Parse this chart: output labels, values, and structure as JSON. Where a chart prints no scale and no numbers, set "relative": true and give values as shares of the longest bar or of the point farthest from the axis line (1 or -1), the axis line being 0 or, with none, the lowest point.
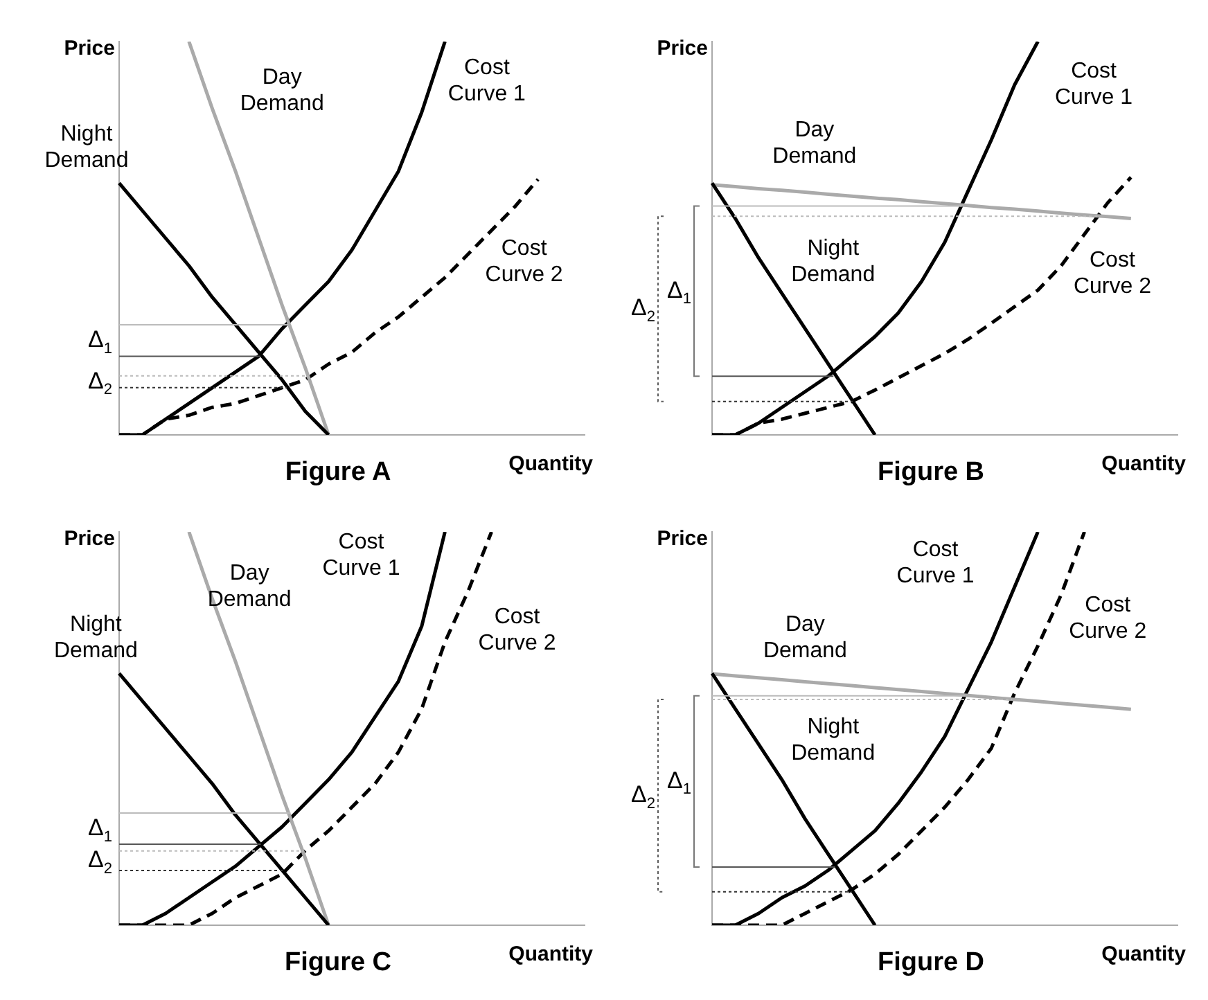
{
  "chart_data": [
    {
      "type": "line",
      "relative": true,
      "title": "Figure A",
      "xlabel": "Quantity",
      "ylabel": "Price",
      "categories": [
        null,
        null,
        null,
        null,
        null,
        null,
        null,
        null,
        null,
        null,
        null,
        null,
        null,
        null,
        null,
        null,
        null,
        null,
        null,
        null,
        null
      ],
      "series": [
        {
          "name": "Night Demand",
          "color": "#000000",
          "values": [
            0.64,
            0.57,
            0.5,
            0.43,
            0.35,
            0.28,
            0.21,
            0.14,
            0.06,
            0,
            null,
            null,
            null,
            null,
            null,
            null,
            null,
            null,
            null,
            null,
            null
          ]
        },
        {
          "name": "Day Demand",
          "color": "#aaaaaa",
          "values": [
            null,
            null,
            null,
            1,
            0.83,
            0.67,
            0.5,
            0.33,
            0.17,
            0,
            null,
            null,
            null,
            null,
            null,
            null,
            null,
            null,
            null,
            null,
            null
          ]
        },
        {
          "name": "Cost Curve 1",
          "color": "#000000",
          "values": [
            0,
            0,
            0.04,
            0.08,
            0.12,
            0.16,
            0.2,
            0.27,
            0.33,
            0.39,
            0.47,
            0.57,
            0.67,
            0.82,
            1,
            null,
            null,
            null,
            null,
            null,
            null
          ]
        },
        {
          "name": "Cost Curve 2",
          "color": "#000000",
          "line_style": "dashed",
          "values": [
            0,
            0,
            0.04,
            0.05,
            0.07,
            0.08,
            0.1,
            0.12,
            0.14,
            0.18,
            0.21,
            0.26,
            0.3,
            0.35,
            0.4,
            0.46,
            0.52,
            0.58,
            0.65,
            null,
            null
          ]
        }
      ],
      "ref_lines": [
        {
          "axis": "y",
          "value": 0.28,
          "color": "#bbbbbb",
          "line_style": "solid"
        },
        {
          "axis": "y",
          "value": 0.2,
          "color": "#555555",
          "line_style": "solid"
        },
        {
          "axis": "y",
          "value": 0.15,
          "color": "#bbbbbb",
          "line_style": "dotted"
        },
        {
          "axis": "y",
          "value": 0.12,
          "color": "#333333",
          "line_style": "dotted"
        }
      ],
      "annotations": [
        "Δ$_{1}$",
        "Δ$_{2}$"
      ]
    },
    {
      "type": "line",
      "relative": true,
      "title": "Figure B",
      "xlabel": "Quantity",
      "ylabel": "Price",
      "categories": [
        null,
        null,
        null,
        null,
        null,
        null,
        null,
        null,
        null,
        null,
        null,
        null,
        null,
        null,
        null,
        null,
        null,
        null,
        null,
        null,
        null
      ],
      "series": [
        {
          "name": "Night Demand",
          "color": "#000000",
          "values": [
            0.64,
            0.55,
            0.45,
            0.36,
            0.27,
            0.18,
            0.09,
            0,
            null,
            null,
            null,
            null,
            null,
            null,
            null,
            null,
            null,
            null,
            null,
            null,
            null
          ]
        },
        {
          "name": "Day Demand",
          "color": "#aaaaaa",
          "values": [
            0.636,
            0.631,
            0.626,
            0.622,
            0.617,
            0.612,
            0.607,
            0.602,
            0.598,
            0.593,
            0.588,
            0.583,
            0.578,
            0.574,
            0.569,
            0.564,
            0.559,
            0.555,
            0.55,
            null,
            null
          ]
        },
        {
          "name": "Cost Curve 1",
          "color": "#000000",
          "values": [
            0,
            0,
            0.03,
            0.07,
            0.11,
            0.15,
            0.2,
            0.25,
            0.31,
            0.39,
            0.49,
            0.62,
            0.75,
            0.89,
            1,
            null,
            null,
            null,
            null,
            null,
            null
          ]
        },
        {
          "name": "Cost Curve 2",
          "color": "#000000",
          "line_style": "dashed",
          "values": [
            0,
            0,
            0.03,
            0.04,
            0.055,
            0.07,
            0.085,
            0.114,
            0.145,
            0.176,
            0.207,
            0.243,
            0.284,
            0.326,
            0.368,
            0.43,
            0.51,
            0.59,
            0.655,
            null,
            null
          ]
        }
      ],
      "ref_lines": [
        {
          "axis": "y",
          "value": 0.582,
          "color": "#bbbbbb",
          "line_style": "solid"
        },
        {
          "axis": "y",
          "value": 0.556,
          "color": "#bbbbbb",
          "line_style": "dotted"
        },
        {
          "axis": "y",
          "value": 0.149,
          "color": "#555555",
          "line_style": "solid"
        },
        {
          "axis": "y",
          "value": 0.085,
          "color": "#333333",
          "line_style": "dotted"
        }
      ],
      "annotations": [
        "Δ$_{1}$",
        "Δ$_{2}$"
      ]
    },
    {
      "type": "line",
      "relative": true,
      "title": "Figure C",
      "xlabel": "Quantity",
      "ylabel": "Price",
      "categories": [
        null,
        null,
        null,
        null,
        null,
        null,
        null,
        null,
        null,
        null,
        null,
        null,
        null,
        null,
        null,
        null,
        null,
        null,
        null,
        null,
        null
      ],
      "series": [
        {
          "name": "Night Demand",
          "color": "#000000",
          "values": [
            0.64,
            0.57,
            0.5,
            0.43,
            0.36,
            0.28,
            0.21,
            0.14,
            0.07,
            0,
            null,
            null,
            null,
            null,
            null,
            null,
            null,
            null,
            null,
            null,
            null
          ]
        },
        {
          "name": "Day Demand",
          "color": "#aaaaaa",
          "values": [
            null,
            null,
            null,
            1,
            0.83,
            0.67,
            0.5,
            0.33,
            0.17,
            0,
            null,
            null,
            null,
            null,
            null,
            null,
            null,
            null,
            null,
            null,
            null
          ]
        },
        {
          "name": "Cost Curve 1",
          "color": "#000000",
          "values": [
            0,
            0,
            0.03,
            0.07,
            0.11,
            0.15,
            0.2,
            0.25,
            0.31,
            0.37,
            0.44,
            0.53,
            0.62,
            0.76,
            1,
            null,
            null,
            null,
            null,
            null,
            null
          ]
        },
        {
          "name": "Cost Curve 2",
          "color": "#000000",
          "line_style": "dashed",
          "values": [
            0,
            0,
            0,
            0,
            0.03,
            0.07,
            0.1,
            0.13,
            0.19,
            0.24,
            0.3,
            0.36,
            0.44,
            0.55,
            0.72,
            0.85,
            1,
            null,
            null,
            null,
            null
          ]
        }
      ],
      "ref_lines": [
        {
          "axis": "y",
          "value": 0.285,
          "color": "#bbbbbb",
          "line_style": "solid"
        },
        {
          "axis": "y",
          "value": 0.206,
          "color": "#555555",
          "line_style": "solid"
        },
        {
          "axis": "y",
          "value": 0.189,
          "color": "#bbbbbb",
          "line_style": "dotted"
        },
        {
          "axis": "y",
          "value": 0.139,
          "color": "#333333",
          "line_style": "dotted"
        }
      ],
      "annotations": [
        "Δ$_{1}$",
        "Δ$_{2}$"
      ]
    },
    {
      "type": "line",
      "relative": true,
      "title": "Figure D",
      "xlabel": "Quantity",
      "ylabel": "Price",
      "categories": [
        null,
        null,
        null,
        null,
        null,
        null,
        null,
        null,
        null,
        null,
        null,
        null,
        null,
        null,
        null,
        null,
        null,
        null,
        null,
        null,
        null
      ],
      "series": [
        {
          "name": "Night Demand",
          "color": "#000000",
          "values": [
            0.64,
            0.55,
            0.46,
            0.37,
            0.27,
            0.18,
            0.09,
            0,
            null,
            null,
            null,
            null,
            null,
            null,
            null,
            null,
            null,
            null,
            null,
            null,
            null
          ]
        },
        {
          "name": "Day Demand",
          "color": "#aaaaaa",
          "values": [
            0.639,
            0.634,
            0.629,
            0.624,
            0.619,
            0.614,
            0.609,
            0.604,
            0.599,
            0.594,
            0.589,
            0.584,
            0.579,
            0.574,
            0.569,
            0.564,
            0.559,
            0.554,
            0.549,
            null,
            null
          ]
        },
        {
          "name": "Cost Curve 1",
          "color": "#000000",
          "values": [
            0,
            0,
            0.03,
            0.07,
            0.1,
            0.14,
            0.19,
            0.24,
            0.31,
            0.39,
            0.48,
            0.6,
            0.72,
            0.86,
            1,
            null,
            null,
            null,
            null,
            null,
            null
          ]
        },
        {
          "name": "Cost Curve 2",
          "color": "#000000",
          "line_style": "dashed",
          "values": [
            0,
            0,
            0,
            0,
            0.03,
            0.06,
            0.09,
            0.13,
            0.18,
            0.24,
            0.3,
            0.37,
            0.45,
            0.59,
            0.71,
            0.84,
            1,
            null,
            null,
            null,
            null
          ]
        }
      ],
      "ref_lines": [
        {
          "axis": "y",
          "value": 0.583,
          "color": "#bbbbbb",
          "line_style": "solid"
        },
        {
          "axis": "y",
          "value": 0.574,
          "color": "#bbbbbb",
          "line_style": "dotted"
        },
        {
          "axis": "y",
          "value": 0.148,
          "color": "#555555",
          "line_style": "solid"
        },
        {
          "axis": "y",
          "value": 0.085,
          "color": "#333333",
          "line_style": "dotted"
        }
      ],
      "annotations": [
        "Δ$_{1}$",
        "Δ$_{2}$"
      ]
    }
  ]
}
